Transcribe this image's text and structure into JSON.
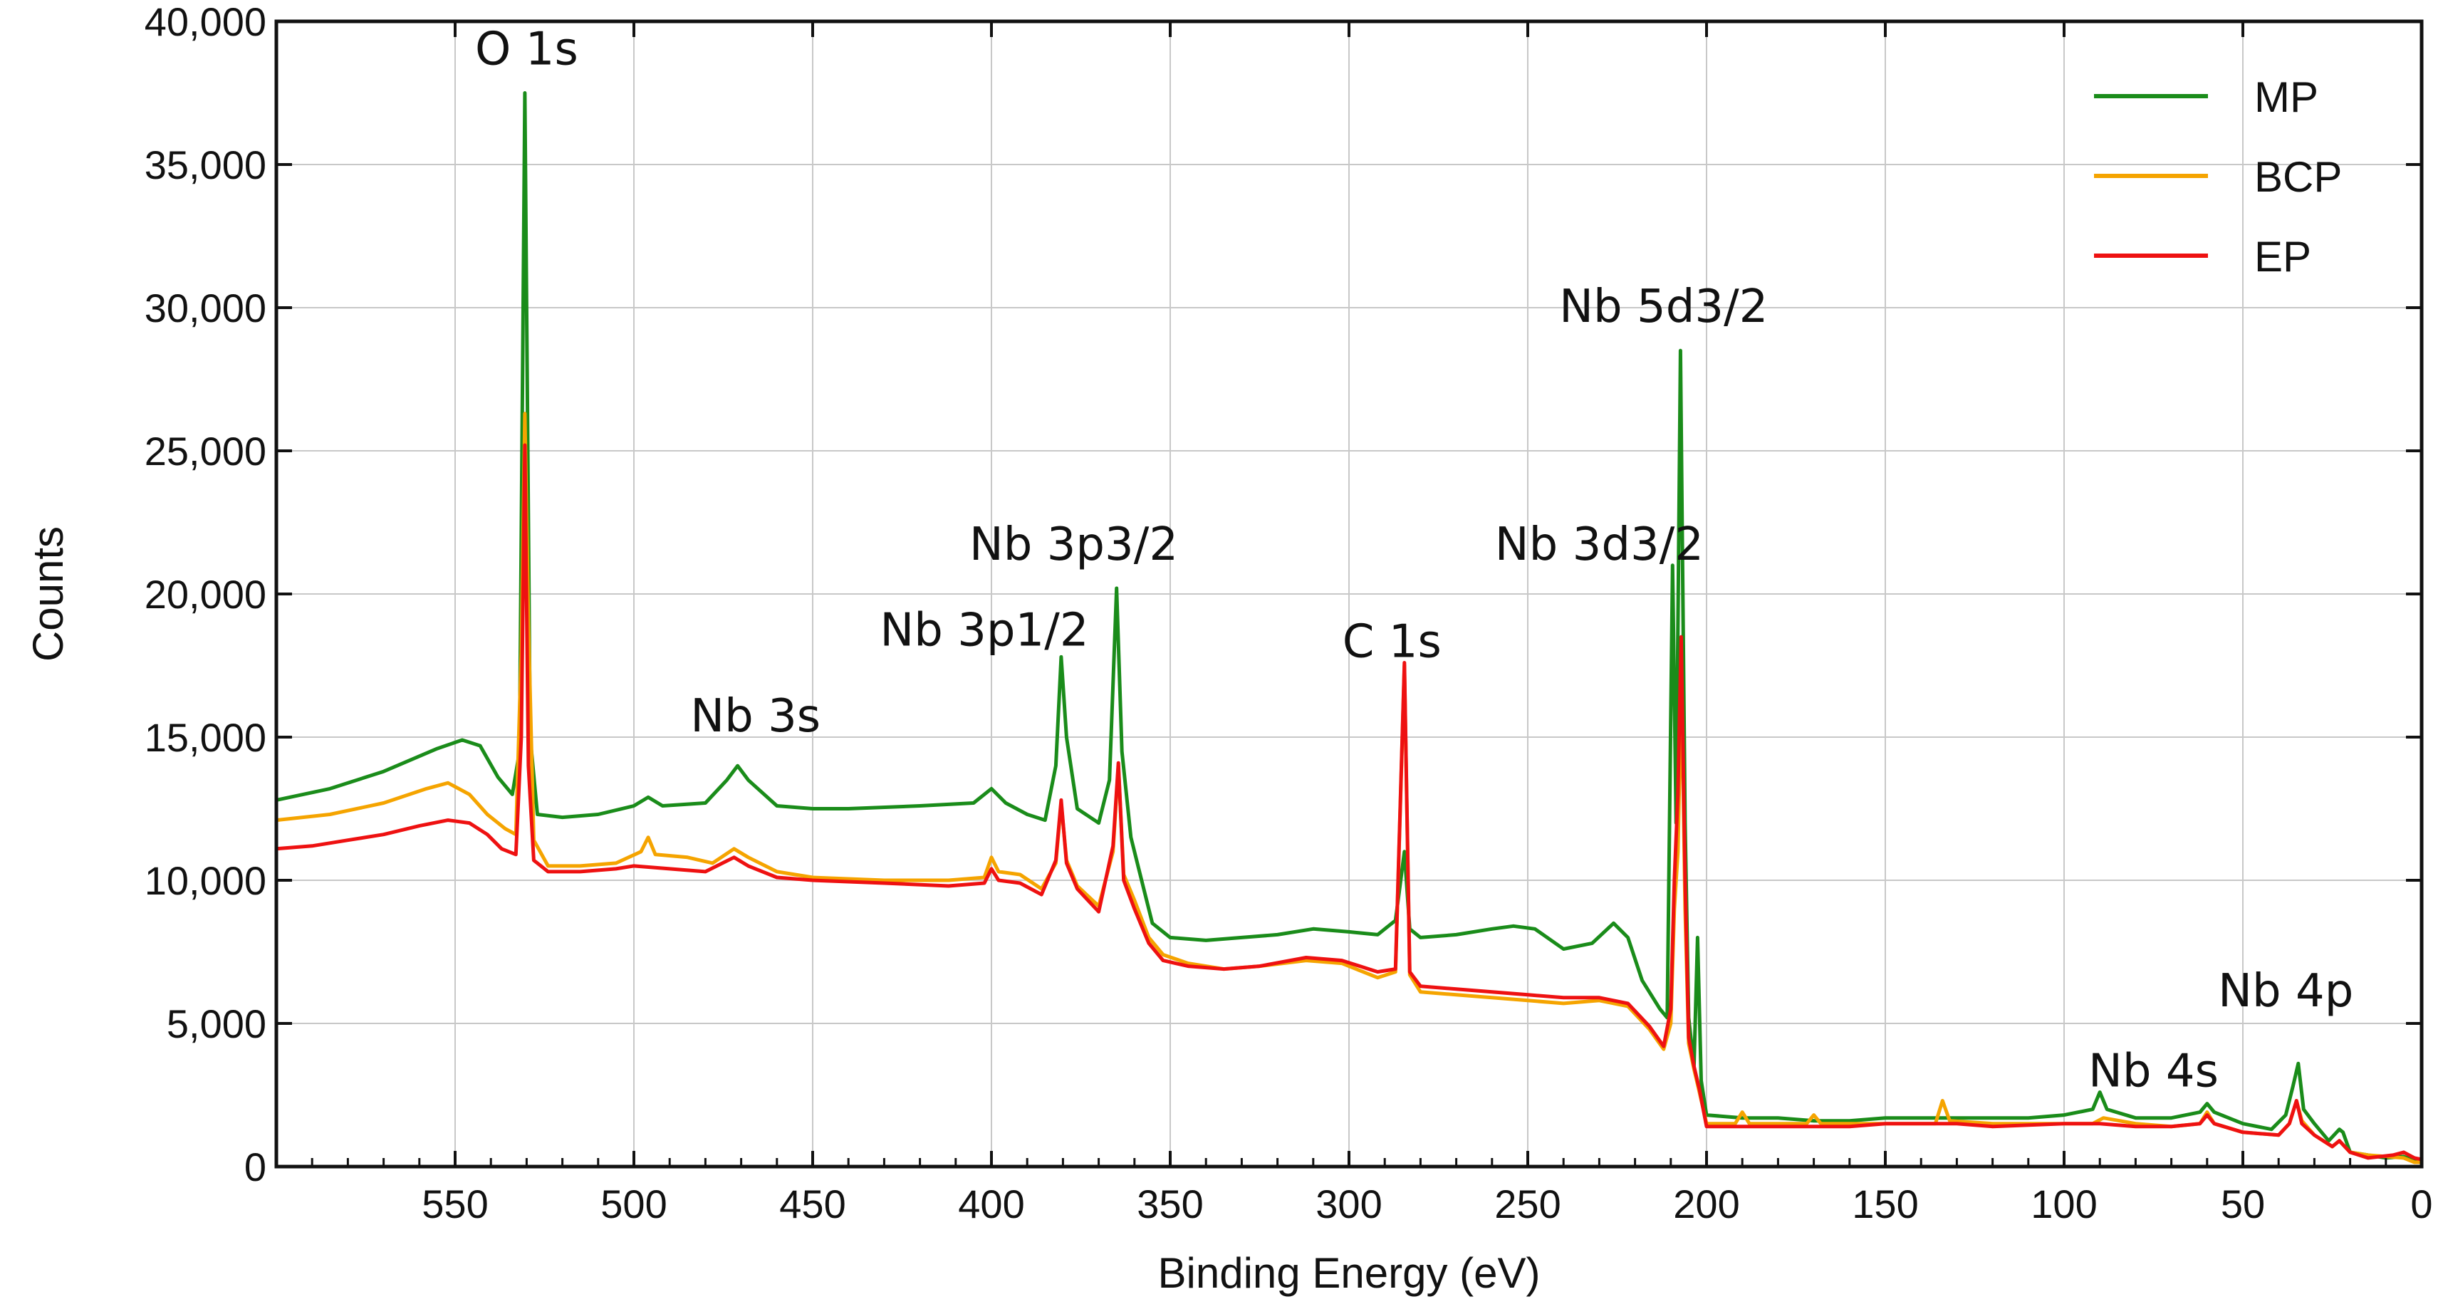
{
  "chart_data": {
    "type": "line",
    "title": "",
    "xlabel": "Binding Energy (eV)",
    "ylabel": "Counts",
    "xlim": [
      600,
      0
    ],
    "x_reversed": true,
    "ylim": [
      0,
      40000
    ],
    "grid": true,
    "legend_position": "top-right",
    "x_ticks": [
      550,
      500,
      450,
      400,
      350,
      300,
      250,
      200,
      150,
      100,
      50,
      0
    ],
    "x_tick_labels": [
      "550",
      "500",
      "450",
      "400",
      "350",
      "300",
      "250",
      "200",
      "150",
      "100",
      "50",
      "0"
    ],
    "y_ticks": [
      0,
      5000,
      10000,
      15000,
      20000,
      25000,
      30000,
      35000,
      40000
    ],
    "y_tick_labels": [
      "0",
      "5,000",
      "10,000",
      "15,000",
      "20,000",
      "25,000",
      "30,000",
      "35,000",
      "40,000"
    ],
    "series": [
      {
        "name": "MP",
        "color": "#1a8c1a",
        "points": [
          [
            600,
            12800
          ],
          [
            585,
            13200
          ],
          [
            570,
            13800
          ],
          [
            555,
            14600
          ],
          [
            548,
            14900
          ],
          [
            543,
            14700
          ],
          [
            538,
            13600
          ],
          [
            534,
            13000
          ],
          [
            532,
            14500
          ],
          [
            530.5,
            37500
          ],
          [
            529,
            15000
          ],
          [
            527,
            12300
          ],
          [
            520,
            12200
          ],
          [
            510,
            12300
          ],
          [
            500,
            12600
          ],
          [
            496,
            12900
          ],
          [
            492,
            12600
          ],
          [
            480,
            12700
          ],
          [
            474,
            13500
          ],
          [
            471,
            14000
          ],
          [
            468,
            13500
          ],
          [
            460,
            12600
          ],
          [
            450,
            12500
          ],
          [
            440,
            12500
          ],
          [
            420,
            12600
          ],
          [
            405,
            12700
          ],
          [
            400,
            13200
          ],
          [
            396,
            12700
          ],
          [
            390,
            12300
          ],
          [
            385,
            12100
          ],
          [
            382,
            14000
          ],
          [
            380.5,
            17800
          ],
          [
            379,
            15000
          ],
          [
            376,
            12500
          ],
          [
            370,
            12000
          ],
          [
            367,
            13500
          ],
          [
            365,
            20200
          ],
          [
            363.5,
            14500
          ],
          [
            361,
            11500
          ],
          [
            359,
            10500
          ],
          [
            355,
            8500
          ],
          [
            350,
            8000
          ],
          [
            340,
            7900
          ],
          [
            330,
            8000
          ],
          [
            320,
            8100
          ],
          [
            310,
            8300
          ],
          [
            300,
            8200
          ],
          [
            292,
            8100
          ],
          [
            287,
            8600
          ],
          [
            284.5,
            11000
          ],
          [
            283,
            8300
          ],
          [
            280,
            8000
          ],
          [
            270,
            8100
          ],
          [
            260,
            8300
          ],
          [
            254,
            8400
          ],
          [
            248,
            8300
          ],
          [
            240,
            7600
          ],
          [
            232,
            7800
          ],
          [
            226,
            8500
          ],
          [
            222,
            8000
          ],
          [
            218,
            6500
          ],
          [
            213,
            5500
          ],
          [
            211,
            5200
          ],
          [
            209.5,
            21000
          ],
          [
            208.5,
            12000
          ],
          [
            207.3,
            28500
          ],
          [
            206,
            12000
          ],
          [
            205,
            5200
          ],
          [
            203.5,
            3500
          ],
          [
            202.5,
            8000
          ],
          [
            201.5,
            3000
          ],
          [
            200,
            1800
          ],
          [
            190,
            1700
          ],
          [
            180,
            1700
          ],
          [
            170,
            1600
          ],
          [
            160,
            1600
          ],
          [
            150,
            1700
          ],
          [
            140,
            1700
          ],
          [
            130,
            1700
          ],
          [
            120,
            1700
          ],
          [
            110,
            1700
          ],
          [
            100,
            1800
          ],
          [
            92,
            2000
          ],
          [
            90,
            2600
          ],
          [
            88,
            2000
          ],
          [
            80,
            1700
          ],
          [
            70,
            1700
          ],
          [
            62,
            1900
          ],
          [
            60,
            2200
          ],
          [
            58,
            1900
          ],
          [
            50,
            1500
          ],
          [
            42,
            1300
          ],
          [
            38,
            1800
          ],
          [
            36,
            2800
          ],
          [
            34.5,
            3600
          ],
          [
            33,
            2000
          ],
          [
            30,
            1500
          ],
          [
            26,
            900
          ],
          [
            23,
            1300
          ],
          [
            22,
            1200
          ],
          [
            20,
            500
          ],
          [
            10,
            300
          ],
          [
            5,
            350
          ],
          [
            2,
            200
          ],
          [
            0,
            200
          ]
        ]
      },
      {
        "name": "BCP",
        "color": "#f5a400",
        "points": [
          [
            600,
            12100
          ],
          [
            585,
            12300
          ],
          [
            570,
            12700
          ],
          [
            558,
            13200
          ],
          [
            552,
            13400
          ],
          [
            546,
            13000
          ],
          [
            541,
            12300
          ],
          [
            536,
            11800
          ],
          [
            533,
            11600
          ],
          [
            531.5,
            18000
          ],
          [
            530.5,
            26300
          ],
          [
            529.5,
            19000
          ],
          [
            528,
            11400
          ],
          [
            524,
            10500
          ],
          [
            515,
            10500
          ],
          [
            505,
            10600
          ],
          [
            498,
            11000
          ],
          [
            496,
            11500
          ],
          [
            494,
            10900
          ],
          [
            485,
            10800
          ],
          [
            478,
            10600
          ],
          [
            472,
            11100
          ],
          [
            468,
            10800
          ],
          [
            460,
            10300
          ],
          [
            450,
            10100
          ],
          [
            430,
            10000
          ],
          [
            412,
            10000
          ],
          [
            402,
            10100
          ],
          [
            400,
            10800
          ],
          [
            398,
            10300
          ],
          [
            392,
            10200
          ],
          [
            386,
            9700
          ],
          [
            382,
            10600
          ],
          [
            380.5,
            12700
          ],
          [
            379,
            10700
          ],
          [
            376,
            9800
          ],
          [
            370,
            9100
          ],
          [
            366,
            11000
          ],
          [
            364.5,
            14000
          ],
          [
            363,
            10200
          ],
          [
            360,
            9300
          ],
          [
            356,
            8000
          ],
          [
            352,
            7400
          ],
          [
            345,
            7100
          ],
          [
            335,
            6900
          ],
          [
            325,
            7000
          ],
          [
            312,
            7200
          ],
          [
            302,
            7100
          ],
          [
            292,
            6600
          ],
          [
            287,
            6800
          ],
          [
            284.5,
            17500
          ],
          [
            283,
            6700
          ],
          [
            280,
            6100
          ],
          [
            270,
            6000
          ],
          [
            260,
            5900
          ],
          [
            250,
            5800
          ],
          [
            240,
            5700
          ],
          [
            230,
            5800
          ],
          [
            222,
            5600
          ],
          [
            216,
            4800
          ],
          [
            212,
            4100
          ],
          [
            210,
            5000
          ],
          [
            209,
            9000
          ],
          [
            208,
            11000
          ],
          [
            207,
            17000
          ],
          [
            206,
            9000
          ],
          [
            205,
            4300
          ],
          [
            203.5,
            3400
          ],
          [
            202,
            2600
          ],
          [
            200,
            1500
          ],
          [
            192,
            1500
          ],
          [
            190,
            1900
          ],
          [
            188,
            1500
          ],
          [
            172,
            1500
          ],
          [
            170,
            1800
          ],
          [
            168,
            1500
          ],
          [
            136,
            1500
          ],
          [
            134,
            2300
          ],
          [
            132,
            1600
          ],
          [
            120,
            1500
          ],
          [
            100,
            1500
          ],
          [
            92,
            1500
          ],
          [
            89,
            1700
          ],
          [
            80,
            1500
          ],
          [
            70,
            1400
          ],
          [
            62,
            1500
          ],
          [
            60,
            1900
          ],
          [
            58,
            1500
          ],
          [
            50,
            1200
          ],
          [
            40,
            1100
          ],
          [
            37,
            1500
          ],
          [
            35,
            2300
          ],
          [
            33.5,
            1600
          ],
          [
            30,
            1100
          ],
          [
            25,
            700
          ],
          [
            23,
            900
          ],
          [
            20,
            500
          ],
          [
            15,
            400
          ],
          [
            5,
            300
          ],
          [
            2,
            150
          ],
          [
            0,
            150
          ]
        ]
      },
      {
        "name": "EP",
        "color": "#ee1111",
        "points": [
          [
            600,
            11100
          ],
          [
            590,
            11200
          ],
          [
            580,
            11400
          ],
          [
            570,
            11600
          ],
          [
            560,
            11900
          ],
          [
            552,
            12100
          ],
          [
            546,
            12000
          ],
          [
            541,
            11600
          ],
          [
            537,
            11100
          ],
          [
            533,
            10900
          ],
          [
            531.5,
            15000
          ],
          [
            530.5,
            25200
          ],
          [
            529.5,
            14000
          ],
          [
            528,
            10700
          ],
          [
            524,
            10300
          ],
          [
            515,
            10300
          ],
          [
            505,
            10400
          ],
          [
            500,
            10500
          ],
          [
            490,
            10400
          ],
          [
            480,
            10300
          ],
          [
            472,
            10800
          ],
          [
            468,
            10500
          ],
          [
            460,
            10100
          ],
          [
            450,
            10000
          ],
          [
            430,
            9900
          ],
          [
            412,
            9800
          ],
          [
            402,
            9900
          ],
          [
            400,
            10400
          ],
          [
            398,
            10000
          ],
          [
            392,
            9900
          ],
          [
            386,
            9500
          ],
          [
            382,
            10700
          ],
          [
            380.5,
            12800
          ],
          [
            379,
            10600
          ],
          [
            376,
            9700
          ],
          [
            370,
            8900
          ],
          [
            366,
            11200
          ],
          [
            364.5,
            14100
          ],
          [
            363,
            10000
          ],
          [
            360,
            9000
          ],
          [
            356,
            7800
          ],
          [
            352,
            7200
          ],
          [
            345,
            7000
          ],
          [
            335,
            6900
          ],
          [
            325,
            7000
          ],
          [
            312,
            7300
          ],
          [
            302,
            7200
          ],
          [
            292,
            6800
          ],
          [
            287,
            6900
          ],
          [
            284.5,
            17600
          ],
          [
            283,
            6800
          ],
          [
            280,
            6300
          ],
          [
            270,
            6200
          ],
          [
            260,
            6100
          ],
          [
            250,
            6000
          ],
          [
            240,
            5900
          ],
          [
            230,
            5900
          ],
          [
            222,
            5700
          ],
          [
            216,
            4900
          ],
          [
            212,
            4200
          ],
          [
            210,
            5500
          ],
          [
            209,
            10000
          ],
          [
            208,
            13000
          ],
          [
            207.1,
            18500
          ],
          [
            206,
            10000
          ],
          [
            205,
            4500
          ],
          [
            203.5,
            3500
          ],
          [
            202,
            2700
          ],
          [
            200,
            1400
          ],
          [
            190,
            1400
          ],
          [
            180,
            1400
          ],
          [
            170,
            1400
          ],
          [
            160,
            1400
          ],
          [
            150,
            1500
          ],
          [
            140,
            1500
          ],
          [
            130,
            1500
          ],
          [
            120,
            1400
          ],
          [
            100,
            1500
          ],
          [
            90,
            1500
          ],
          [
            80,
            1400
          ],
          [
            70,
            1400
          ],
          [
            62,
            1500
          ],
          [
            60,
            1800
          ],
          [
            58,
            1500
          ],
          [
            50,
            1200
          ],
          [
            40,
            1100
          ],
          [
            37,
            1500
          ],
          [
            35,
            2300
          ],
          [
            33.5,
            1500
          ],
          [
            30,
            1100
          ],
          [
            25,
            700
          ],
          [
            23,
            900
          ],
          [
            20,
            500
          ],
          [
            15,
            300
          ],
          [
            8,
            400
          ],
          [
            5,
            500
          ],
          [
            2,
            300
          ],
          [
            0,
            250
          ]
        ]
      }
    ],
    "annotations": [
      {
        "text": "O 1s",
        "x": 530,
        "y": 38500
      },
      {
        "text": "Nb 3s",
        "x": 466,
        "y": 15200
      },
      {
        "text": "Nb 3p1/2",
        "x": 402,
        "y": 18200
      },
      {
        "text": "Nb 3p3/2",
        "x": 377,
        "y": 21200
      },
      {
        "text": "C 1s",
        "x": 288,
        "y": 17800
      },
      {
        "text": "Nb 3d3/2",
        "x": 230,
        "y": 21200
      },
      {
        "text": "Nb 5d3/2",
        "x": 212,
        "y": 29500
      },
      {
        "text": "Nb 4s",
        "x": 75,
        "y": 2800
      },
      {
        "text": "Nb 4p",
        "x": 38,
        "y": 5600
      }
    ]
  }
}
